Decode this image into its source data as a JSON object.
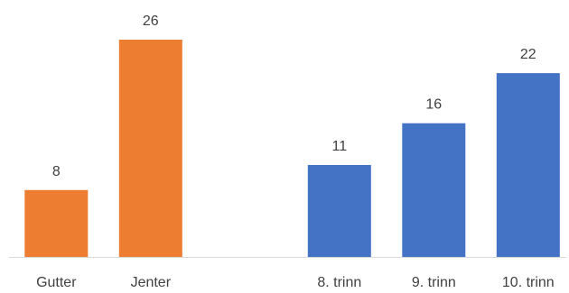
{
  "chart_data": {
    "type": "bar",
    "title": "",
    "xlabel": "",
    "ylabel": "",
    "ylim": [
      0,
      26
    ],
    "grid": false,
    "legend": "none",
    "categories": [
      "Gutter",
      "Jenter",
      "",
      "8. trinn",
      "9. trinn",
      "10. trinn"
    ],
    "values": [
      8,
      26,
      null,
      11,
      16,
      22
    ],
    "colors": [
      "#ED7D31",
      "#ED7D31",
      null,
      "#4472C4",
      "#4472C4",
      "#4472C4"
    ],
    "value_labels": [
      "8",
      "26",
      "",
      "11",
      "16",
      "22"
    ],
    "axis_color": "#D9D9D9",
    "label_color": "#404040"
  }
}
